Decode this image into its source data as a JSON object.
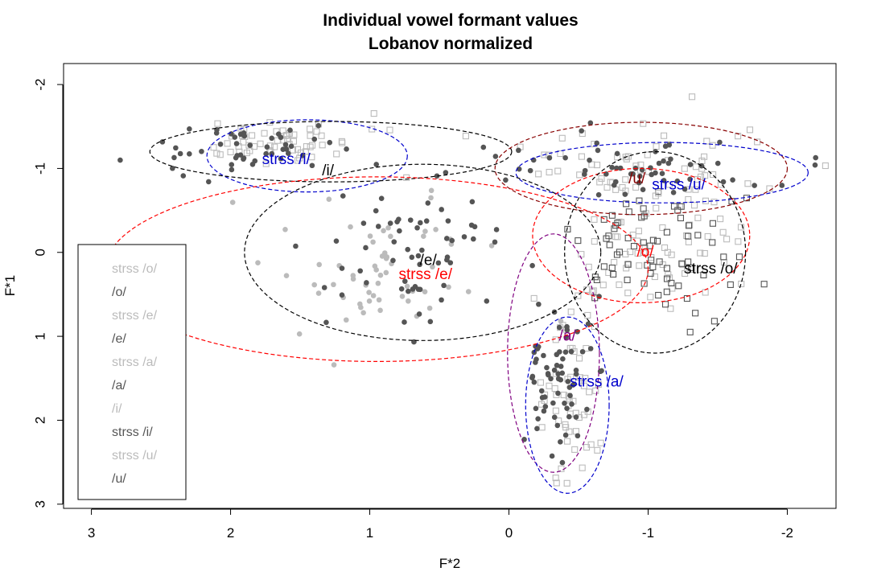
{
  "chart_data": {
    "type": "scatter",
    "title": "Individual vowel formant values",
    "subtitle": "Lobanov normalized",
    "xlabel": "F*2",
    "ylabel": "F*1",
    "xlim": [
      3.2,
      -2.35
    ],
    "ylim": [
      3.05,
      -2.25
    ],
    "x_reversed": true,
    "y_reversed": true,
    "x_ticks": [
      3,
      2,
      1,
      0,
      -1,
      -2
    ],
    "y_ticks": [
      -2,
      -1,
      0,
      1,
      2,
      3
    ],
    "x_tick_labels": [
      "3",
      "2",
      "1",
      "0",
      "-1",
      "-2"
    ],
    "y_tick_labels": [
      "-2",
      "-1",
      "0",
      "1",
      "2",
      "3"
    ],
    "grid": false,
    "legend_position": "bottom-left",
    "series": [
      {
        "name": "strss /o/",
        "color": "#bbbbbb",
        "marker": "square",
        "center": [
          -1.05,
          -0.1
        ],
        "spread": [
          0.3,
          0.38
        ],
        "count": 70
      },
      {
        "name": "/o/",
        "color": "#555555",
        "marker": "square",
        "center": [
          -1.1,
          -0.05
        ],
        "spread": [
          0.32,
          0.4
        ],
        "count": 70
      },
      {
        "name": "strss /e/",
        "color": "#bbbbbb",
        "marker": "dot",
        "center": [
          0.95,
          0.3
        ],
        "spread": [
          0.38,
          0.45
        ],
        "count": 60
      },
      {
        "name": "/e/",
        "color": "#555555",
        "marker": "dot",
        "center": [
          0.7,
          0.05
        ],
        "spread": [
          0.3,
          0.45
        ],
        "count": 60
      },
      {
        "name": "strss /a/",
        "color": "#bbbbbb",
        "marker": "square",
        "center": [
          -0.45,
          1.7
        ],
        "spread": [
          0.12,
          0.45
        ],
        "count": 60
      },
      {
        "name": "/a/",
        "color": "#555555",
        "marker": "dot",
        "center": [
          -0.35,
          1.45
        ],
        "spread": [
          0.15,
          0.5
        ],
        "count": 70
      },
      {
        "name": "/i/",
        "color": "#bbbbbb",
        "marker": "square",
        "center": [
          1.65,
          -1.35
        ],
        "spread": [
          0.3,
          0.12
        ],
        "count": 60
      },
      {
        "name": "strss /i/",
        "color": "#555555",
        "marker": "dot",
        "center": [
          1.95,
          -1.2
        ],
        "spread": [
          0.35,
          0.15
        ],
        "count": 50
      },
      {
        "name": "strss /u/",
        "color": "#bbbbbb",
        "marker": "square",
        "center": [
          -1.0,
          -1.05
        ],
        "spread": [
          0.55,
          0.2
        ],
        "count": 60
      },
      {
        "name": "/u/",
        "color": "#555555",
        "marker": "dot",
        "center": [
          -0.95,
          -1.05
        ],
        "spread": [
          0.6,
          0.22
        ],
        "count": 60
      }
    ],
    "ellipses": [
      {
        "label": "strss /i/",
        "color": "#0000cc",
        "dashed": true,
        "cx": 1.45,
        "cy": -1.15,
        "rx": 0.72,
        "ry": 0.43
      },
      {
        "label": "/i/",
        "color": "#000000",
        "dashed": true,
        "cx": 1.28,
        "cy": -1.2,
        "rx": 1.3,
        "ry": 0.36
      },
      {
        "label": "/e/",
        "color": "#000000",
        "dashed": true,
        "cx": 0.62,
        "cy": 0.0,
        "rx": 1.28,
        "ry": 1.05
      },
      {
        "label": "strss /e/",
        "color": "#ff0000",
        "dashed": true,
        "cx": 0.95,
        "cy": 0.2,
        "rx": 1.95,
        "ry": 1.1
      },
      {
        "label": "/u/",
        "color": "#880000",
        "dashed": true,
        "cx": -0.95,
        "cy": -1.0,
        "rx": 1.05,
        "ry": 0.55
      },
      {
        "label": "strss /u/",
        "color": "#0000cc",
        "dashed": true,
        "cx": -1.1,
        "cy": -0.95,
        "rx": 1.05,
        "ry": 0.36
      },
      {
        "label": "/o/",
        "color": "#ff0000",
        "dashed": true,
        "cx": -0.95,
        "cy": -0.2,
        "rx": 0.78,
        "ry": 0.8
      },
      {
        "label": "strss /o/",
        "color": "#000000",
        "dashed": true,
        "cx": -1.05,
        "cy": 0.0,
        "rx": 0.65,
        "ry": 1.2
      },
      {
        "label": "/a/",
        "color": "#800080",
        "dashed": true,
        "cx": -0.32,
        "cy": 1.2,
        "rx": 0.33,
        "ry": 1.42
      },
      {
        "label": "strss /a/",
        "color": "#0000cc",
        "dashed": true,
        "cx": -0.42,
        "cy": 1.82,
        "rx": 0.3,
        "ry": 1.05
      }
    ],
    "annotations": [
      {
        "text": "strss /i/",
        "color": "#0000cc",
        "x": 1.6,
        "y": -1.05
      },
      {
        "text": "/i/",
        "color": "#000000",
        "x": 1.3,
        "y": -0.92
      },
      {
        "text": "/e/",
        "color": "#000000",
        "x": 0.58,
        "y": 0.15
      },
      {
        "text": "strss /e/",
        "color": "#ff0000",
        "x": 0.6,
        "y": 0.32
      },
      {
        "text": "/u/",
        "color": "#880000",
        "x": -0.92,
        "y": -0.82
      },
      {
        "text": "strss /u/",
        "color": "#0000cc",
        "x": -1.22,
        "y": -0.75
      },
      {
        "text": "/o/",
        "color": "#ff0000",
        "x": -0.98,
        "y": 0.05
      },
      {
        "text": "strss /o/",
        "color": "#000000",
        "x": -1.45,
        "y": 0.25
      },
      {
        "text": "/a/",
        "color": "#800080",
        "x": -0.42,
        "y": 1.05
      },
      {
        "text": "strss /a/",
        "color": "#0000cc",
        "x": -0.63,
        "y": 1.6
      }
    ]
  }
}
